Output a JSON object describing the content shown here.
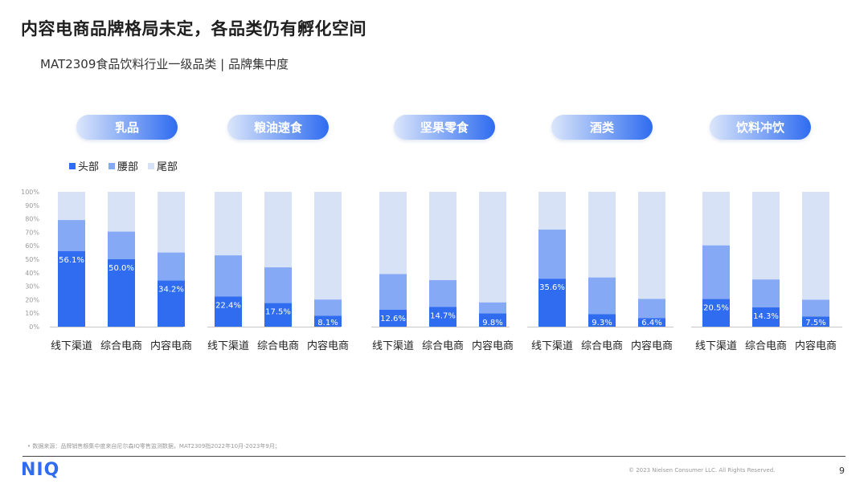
{
  "title": "内容电商品牌格局未定，各品类仍有孵化空间",
  "subtitle": "MAT2309食品饮料行业一级品类 | 品牌集中度",
  "footnote": "•    数据来源：品牌销售额集中度来自尼尔森IQ零售监测数据，MAT2309指2022年10月-2023年9月；",
  "copyright": "© 2023 Nielsen Consumer LLC. All Rights Reserved.",
  "page_number": "9",
  "logo_text": "NIQ",
  "colors": {
    "head": "#2f6cf0",
    "waist": "#86a9f5",
    "tail": "#d7e2f7",
    "accent": "#2f6cf0"
  },
  "chart_data": {
    "type": "bar",
    "stacked": true,
    "ylim": [
      0,
      100
    ],
    "yticks": [
      "0%",
      "10%",
      "20%",
      "30%",
      "40%",
      "50%",
      "60%",
      "70%",
      "80%",
      "90%",
      "100%"
    ],
    "legend": [
      "头部",
      "腰部",
      "尾部"
    ],
    "legend_position": "top-left",
    "channels": [
      "线下渠道",
      "综合电商",
      "内容电商"
    ],
    "groups": [
      {
        "name": "乳品",
        "head": [
          56.1,
          50.0,
          34.2
        ],
        "waist": [
          23.0,
          20.5,
          20.8
        ],
        "head_labels": [
          "56.1%",
          "50.0%",
          "34.2%"
        ]
      },
      {
        "name": "粮油速食",
        "head": [
          22.4,
          17.5,
          8.1
        ],
        "waist": [
          30.5,
          26.5,
          12.0
        ],
        "head_labels": [
          "22.4%",
          "17.5%",
          "8.1%"
        ]
      },
      {
        "name": "坚果零食",
        "head": [
          12.6,
          14.7,
          9.8
        ],
        "waist": [
          26.4,
          19.8,
          8.2
        ],
        "head_labels": [
          "12.6%",
          "14.7%",
          "9.8%"
        ]
      },
      {
        "name": "酒类",
        "head": [
          35.6,
          9.3,
          6.4
        ],
        "waist": [
          36.4,
          27.2,
          14.2
        ],
        "head_labels": [
          "35.6%",
          "9.3%",
          "6.4%"
        ]
      },
      {
        "name": "饮料冲饮",
        "head": [
          20.5,
          14.3,
          7.5
        ],
        "waist": [
          39.8,
          20.7,
          12.5
        ],
        "head_labels": [
          "20.5%",
          "14.3%",
          "7.5%"
        ]
      }
    ]
  }
}
